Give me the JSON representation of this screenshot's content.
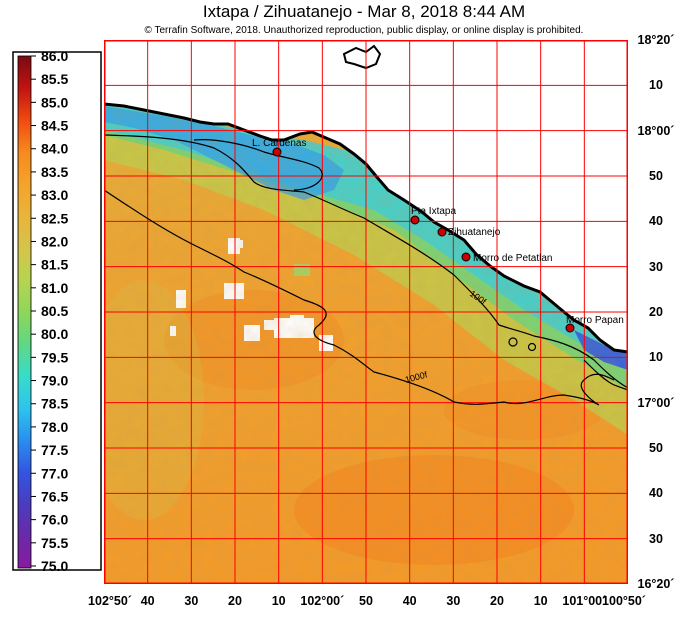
{
  "title": "Ixtapa / Zihuatanejo - Mar 8, 2018 8:44 AM",
  "copyright": "© Terrafin Software,  2018.  Unauthorized reproduction, public display, or online display is prohibited.",
  "colorbar": {
    "min": 75.0,
    "max": 86.0,
    "labels": [
      "86.0",
      "85.5",
      "85.0",
      "84.5",
      "84.0",
      "83.5",
      "83.0",
      "82.5",
      "82.0",
      "81.5",
      "81.0",
      "80.5",
      "80.0",
      "79.5",
      "79.0",
      "78.5",
      "78.0",
      "77.5",
      "77.0",
      "76.5",
      "76.0",
      "75.5",
      "75.0"
    ],
    "stops": [
      "#7a0a10",
      "#c01410",
      "#f04a10",
      "#f78a1e",
      "#f5a32a",
      "#e9b43a",
      "#d6c44a",
      "#b7d450",
      "#8fd65a",
      "#5ed885",
      "#38dcc8",
      "#2ec4ee",
      "#2a8ff0",
      "#3355e0",
      "#4a3cc0",
      "#6a2aa8",
      "#8a1aa0"
    ]
  },
  "map": {
    "grid_color": "#ff0000",
    "land_color": "#ffffff",
    "coast_color": "#000000"
  },
  "x_axis_labels": [
    "102°50´",
    "40",
    "30",
    "20",
    "10",
    "102°00´",
    "50",
    "40",
    "30",
    "20",
    "10",
    "101°00´",
    "100°50´"
  ],
  "y_axis_labels": [
    "18°20´",
    "10",
    "18°00´",
    "50",
    "40",
    "30",
    "20",
    "10",
    "17°00´",
    "50",
    "40",
    "30",
    "16°20´"
  ],
  "places": [
    {
      "name": "L. Cardenas"
    },
    {
      "name": "Pta Ixtapa"
    },
    {
      "name": "Zihuatanejo"
    },
    {
      "name": "Morro de Petatlan"
    },
    {
      "name": "Morro Papan"
    }
  ],
  "contours": [
    {
      "label": "100f"
    },
    {
      "label": "1000f"
    }
  ]
}
